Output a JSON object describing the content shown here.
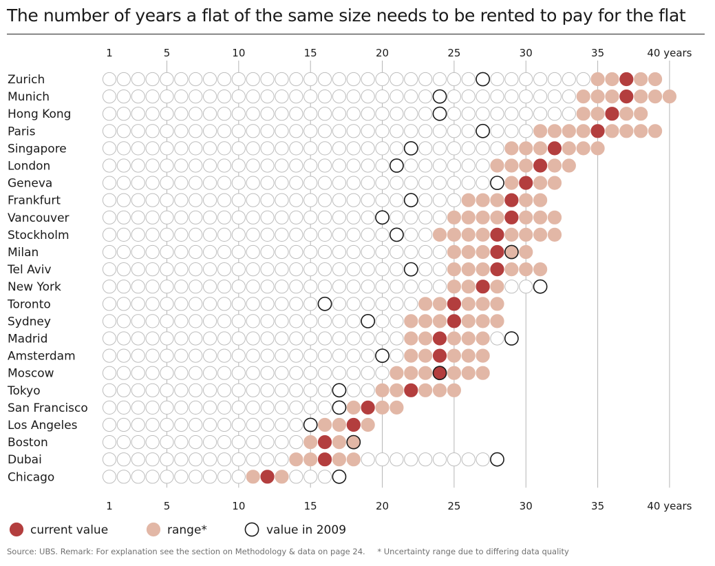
{
  "title": "The number of years a flat of the same size needs to be rented to pay for the flat",
  "colors": {
    "current": "#b33e3e",
    "range": "#e2b7a6",
    "empty_stroke": "#bdbdbd",
    "ring_2009": "#1a1a1a",
    "gridline": "#b5b5b5"
  },
  "chart_data": {
    "type": "scatter",
    "x_ticks": [
      "1",
      "5",
      "10",
      "15",
      "20",
      "25",
      "30",
      "35",
      "40 years"
    ],
    "x_tick_values": [
      1,
      5,
      10,
      15,
      20,
      25,
      30,
      35,
      40
    ],
    "xlim": [
      1,
      40
    ],
    "rows": [
      {
        "city": "Zurich",
        "current": 37,
        "range": [
          35,
          39
        ],
        "value_2009": 27
      },
      {
        "city": "Munich",
        "current": 37,
        "range": [
          34,
          40
        ],
        "value_2009": 24
      },
      {
        "city": "Hong Kong",
        "current": 36,
        "range": [
          34,
          38
        ],
        "value_2009": 24
      },
      {
        "city": "Paris",
        "current": 35,
        "range": [
          31,
          39
        ],
        "value_2009": 27
      },
      {
        "city": "Singapore",
        "current": 32,
        "range": [
          29,
          35
        ],
        "value_2009": 22
      },
      {
        "city": "London",
        "current": 31,
        "range": [
          28,
          33
        ],
        "value_2009": 21
      },
      {
        "city": "Geneva",
        "current": 30,
        "range": [
          29,
          32
        ],
        "value_2009": 28
      },
      {
        "city": "Frankfurt",
        "current": 29,
        "range": [
          26,
          31
        ],
        "value_2009": 22
      },
      {
        "city": "Vancouver",
        "current": 29,
        "range": [
          25,
          32
        ],
        "value_2009": 20
      },
      {
        "city": "Stockholm",
        "current": 28,
        "range": [
          24,
          32
        ],
        "value_2009": 21
      },
      {
        "city": "Milan",
        "current": 28,
        "range": [
          25,
          30
        ],
        "value_2009": 29
      },
      {
        "city": "Tel Aviv",
        "current": 28,
        "range": [
          25,
          31
        ],
        "value_2009": 22
      },
      {
        "city": "New York",
        "current": 27,
        "range": [
          25,
          28
        ],
        "value_2009": 31
      },
      {
        "city": "Toronto",
        "current": 25,
        "range": [
          23,
          28
        ],
        "value_2009": 16
      },
      {
        "city": "Sydney",
        "current": 25,
        "range": [
          22,
          28
        ],
        "value_2009": 19
      },
      {
        "city": "Madrid",
        "current": 24,
        "range": [
          22,
          27
        ],
        "value_2009": 29
      },
      {
        "city": "Amsterdam",
        "current": 24,
        "range": [
          22,
          27
        ],
        "value_2009": 20
      },
      {
        "city": "Moscow",
        "current": 24,
        "range": [
          21,
          27
        ],
        "value_2009": 24
      },
      {
        "city": "Tokyo",
        "current": 22,
        "range": [
          20,
          25
        ],
        "value_2009": 17
      },
      {
        "city": "San Francisco",
        "current": 19,
        "range": [
          18,
          21
        ],
        "value_2009": 17
      },
      {
        "city": "Los Angeles",
        "current": 18,
        "range": [
          16,
          19
        ],
        "value_2009": 15
      },
      {
        "city": "Boston",
        "current": 16,
        "range": [
          15,
          18
        ],
        "value_2009": 18
      },
      {
        "city": "Dubai",
        "current": 16,
        "range": [
          14,
          18
        ],
        "value_2009": 28
      },
      {
        "city": "Chicago",
        "current": 12,
        "range": [
          11,
          13
        ],
        "value_2009": 17
      }
    ],
    "legend": {
      "current": "current value",
      "range": "range*",
      "value_2009": "value in 2009"
    }
  },
  "footnote": {
    "source": "Source: UBS.  Remark: For explanation see the section on Methodology & data on page 24.",
    "uncertainty": "* Uncertainty range due to differing data quality"
  }
}
